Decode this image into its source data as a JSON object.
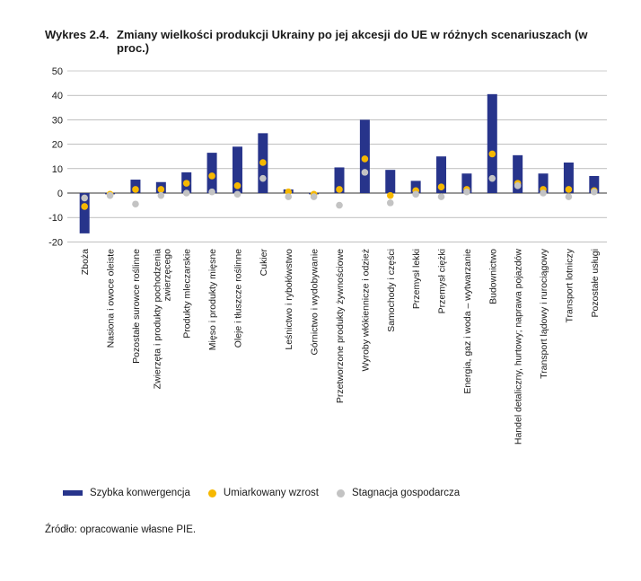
{
  "figure": {
    "label": "Wykres 2.4.",
    "title": "Zmiany wielkości produkcji Ukrainy po jej akcesji do UE w różnych scenariuszach (w proc.)",
    "source": "Źródło: opracowanie własne PIE."
  },
  "colors": {
    "bar": "#27348b",
    "moderate": "#f6b800",
    "stagnation": "#c3c3c3",
    "axis": "#555555"
  },
  "chart_data": {
    "type": "bar",
    "ylim": [
      -20,
      50
    ],
    "yticks": [
      -20,
      -10,
      0,
      10,
      20,
      30,
      40,
      50
    ],
    "xlabel": "",
    "ylabel": "",
    "legend_position": "bottom",
    "categories": [
      "Zboża",
      "Nasiona i owoce oleiste",
      "Pozostałe surowce roślinne",
      "Zwierzęta i produkty pochodzenia zwierzęcego",
      "Produkty mleczarskie",
      "Mięso i produkty mięsne",
      "Oleje i tłuszcze roślinne",
      "Cukier",
      "Leśnictwo i rybołówstwo",
      "Górnictwo i wydobywanie",
      "Przetworzone produkty żywnościowe",
      "Wyroby włókiennicze i odzież",
      "Samochody i części",
      "Przemysł lekki",
      "Przemysł ciężki",
      "Energia, gaz i woda – wytwarzanie",
      "Budownictwo",
      "Handel detaliczny, hurtowy; naprawa pojazdów",
      "Transport lądowy i rurociągowy",
      "Transport lotniczy",
      "Pozostałe usługi"
    ],
    "series": [
      {
        "name": "Szybka konwergencja",
        "kind": "bar",
        "values": [
          -16.5,
          -0.5,
          5.5,
          4.5,
          8.5,
          16.5,
          19,
          24.5,
          1.5,
          -0.5,
          10.5,
          30,
          9.5,
          5,
          15,
          8,
          40.5,
          15.5,
          8,
          12.5,
          7
        ]
      },
      {
        "name": "Umiarkowany wzrost",
        "kind": "dot",
        "values": [
          -5.5,
          -0.5,
          1.5,
          1.5,
          4,
          7,
          3,
          12.5,
          0.5,
          -0.5,
          1.5,
          14,
          -1,
          1,
          2.5,
          1.5,
          16,
          4,
          1.5,
          1.5,
          1
        ]
      },
      {
        "name": "Stagnacja gospodarcza",
        "kind": "dot",
        "values": [
          -2,
          -1,
          -4.5,
          -1,
          0,
          0.5,
          -0.5,
          6,
          -1.5,
          -1.5,
          -5,
          8.5,
          -4,
          -0.5,
          -1.5,
          0.5,
          6,
          3,
          0,
          -1.5,
          0.5
        ]
      }
    ]
  }
}
